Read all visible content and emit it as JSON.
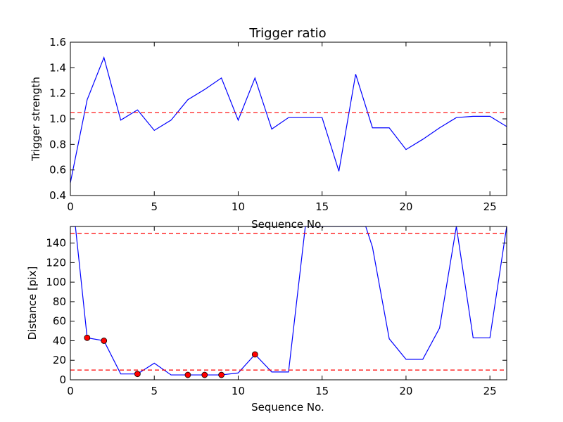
{
  "chart_data": [
    {
      "type": "line",
      "title": "Trigger ratio",
      "xlabel": "Sequence No.",
      "ylabel": "Trigger strength",
      "xlim": [
        0,
        26
      ],
      "ylim": [
        0.4,
        1.6
      ],
      "xticks": [
        0,
        5,
        10,
        15,
        20,
        25
      ],
      "yticks": [
        0.4,
        0.6,
        0.8,
        1.0,
        1.2,
        1.4,
        1.6
      ],
      "ytick_labels": [
        "0.4",
        "0.6",
        "0.8",
        "1.0",
        "1.2",
        "1.4",
        "1.6"
      ],
      "grid": false,
      "series": [
        {
          "color": "#0000ff",
          "x": [
            0,
            1,
            2,
            3,
            4,
            5,
            6,
            7,
            8,
            9,
            10,
            11,
            12,
            13,
            14,
            15,
            16,
            17,
            18,
            19,
            20,
            21,
            22,
            23,
            24,
            25,
            26
          ],
          "y": [
            0.5,
            1.15,
            1.48,
            0.99,
            1.07,
            0.91,
            0.99,
            1.15,
            1.23,
            1.32,
            0.99,
            1.32,
            0.92,
            1.01,
            1.01,
            1.01,
            0.59,
            1.35,
            0.93,
            0.93,
            0.76,
            0.84,
            0.93,
            1.01,
            1.02,
            1.02,
            0.94
          ]
        }
      ],
      "hlines": [
        {
          "y": 1.05,
          "color": "#ff0000",
          "style": "dashed"
        }
      ]
    },
    {
      "type": "line",
      "title": "",
      "xlabel": "Sequence No.",
      "ylabel": "Distance [pix]",
      "xlim": [
        0,
        26
      ],
      "ylim": [
        0,
        157
      ],
      "xticks": [
        0,
        5,
        10,
        15,
        20,
        25
      ],
      "yticks": [
        0,
        20,
        40,
        60,
        80,
        100,
        120,
        140
      ],
      "ytick_labels": [
        "0",
        "20",
        "40",
        "60",
        "80",
        "100",
        "120",
        "140"
      ],
      "grid": false,
      "series": [
        {
          "color": "#0000ff",
          "x": [
            0,
            0.3,
            1,
            2,
            3,
            4,
            5,
            6,
            7,
            8,
            9,
            10,
            11,
            12,
            13,
            14,
            17.6,
            18,
            19,
            20,
            21,
            22,
            23,
            24,
            25,
            26
          ],
          "y": [
            157,
            157,
            43,
            40,
            6,
            6,
            17,
            5,
            5,
            5,
            5,
            7,
            26,
            8,
            8,
            157,
            157,
            136,
            42,
            21,
            21,
            53,
            157,
            43,
            43,
            157
          ]
        }
      ],
      "markers": {
        "color": "#ff0000",
        "x": [
          1,
          2,
          4,
          7,
          8,
          9,
          11
        ],
        "y": [
          43,
          40,
          6,
          5,
          5,
          5,
          26
        ]
      },
      "hlines": [
        {
          "y": 150,
          "color": "#ff0000",
          "style": "dashed"
        },
        {
          "y": 10,
          "color": "#ff0000",
          "style": "dashed"
        }
      ]
    }
  ]
}
